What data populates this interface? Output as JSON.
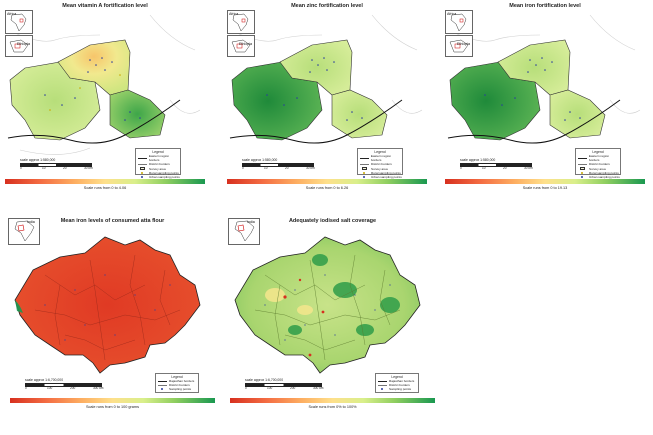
{
  "panels": {
    "vitA": {
      "title": "Mean vitamin A fortification level",
      "legend": {
        "title": "Legend",
        "items": [
          "Eastern region borders",
          "District borders",
          "Survey area",
          "Rural sampling points",
          "Urban sampling points"
        ]
      },
      "scale": {
        "label": "scale approx 1:580,000",
        "ticks": [
          "0",
          "10",
          "20",
          "30 km"
        ]
      },
      "caption": "Scale runs from 0 to 4.06"
    },
    "zinc": {
      "title": "Mean zinc fortification level",
      "legend": {
        "title": "Legend",
        "items": [
          "Eastern region borders",
          "District borders",
          "Survey area",
          "Rural sampling points",
          "Urban sampling points"
        ]
      },
      "scale": {
        "label": "scale approx 1:580,000",
        "ticks": [
          "0",
          "10",
          "20",
          "30 km"
        ]
      },
      "caption": "Scale runs from 0 to 6.26"
    },
    "iron": {
      "title": "Mean iron fortification level",
      "legend": {
        "title": "Legend",
        "items": [
          "Eastern region borders",
          "District borders",
          "Survey area",
          "Rural sampling points",
          "Urban sampling points"
        ]
      },
      "scale": {
        "label": "scale approx 1:580,000",
        "ticks": [
          "0",
          "10",
          "20",
          "30 km"
        ]
      },
      "caption": "Scale runs from 0 to 19.13"
    },
    "atta": {
      "title": "Mean iron levels of consumed atta flour",
      "inset_label": "India",
      "legend": {
        "title": "Legend",
        "items": [
          "Rajasthan borders",
          "District borders",
          "Sampling points"
        ]
      },
      "scale": {
        "label": "scale approx 1:6,700,000",
        "ticks": [
          "0",
          "100",
          "200",
          "300 km"
        ]
      },
      "caption": "Scale runs from 0 to 100 grams"
    },
    "salt": {
      "title": "Adequately iodised salt coverage",
      "inset_label": "India",
      "legend": {
        "title": "Legend",
        "items": [
          "Rajasthan borders",
          "District borders",
          "Sampling points"
        ]
      },
      "scale": {
        "label": "scale approx 1:6,700,000",
        "ticks": [
          "0",
          "100",
          "200",
          "300 km"
        ]
      },
      "caption": "Scale runs from 0% to 100%"
    }
  },
  "inset_labels_small": [
    "Africa",
    "Ethiopia"
  ],
  "colors": {
    "red": "#d7301f",
    "orange": "#fdae61",
    "yellow": "#fee08b",
    "lightgreen": "#d9ef8b",
    "green": "#1a9850",
    "rural_point": "#c8a800",
    "urban_point": "#2b3d9e",
    "sampling_point": "#2b3d9e"
  }
}
